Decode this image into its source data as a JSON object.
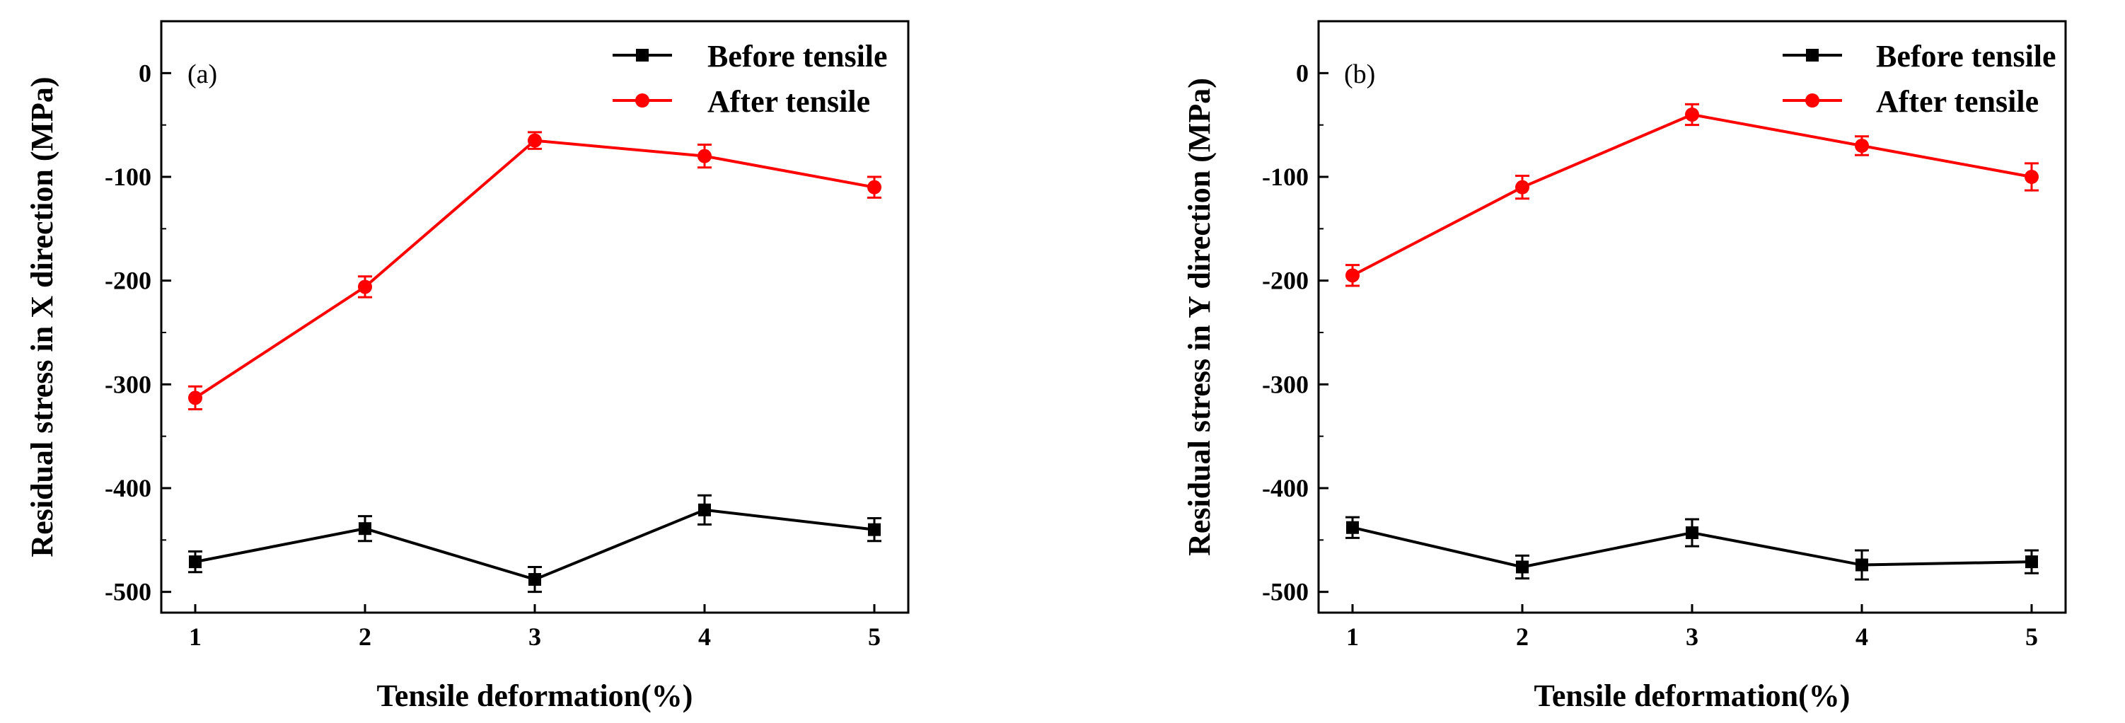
{
  "chart_data": [
    {
      "type": "line",
      "panel_label": "(a)",
      "x": [
        1,
        2,
        3,
        4,
        5
      ],
      "xticks": [
        "1",
        "2",
        "3",
        "4",
        "5"
      ],
      "xlim": [
        0.8,
        5.2
      ],
      "ylim": [
        -520,
        50
      ],
      "yticks": [
        0,
        -100,
        -200,
        -300,
        -400,
        -500
      ],
      "yticklabels": [
        "0",
        "-100",
        "-200",
        "-300",
        "-400",
        "-500"
      ],
      "xlabel": "Tensile deformation(%)",
      "ylabel": "Residual stress in X direction (MPa)",
      "legend_position": "top-right",
      "series": [
        {
          "name": "Before tensile",
          "color": "#000000",
          "marker": "square",
          "values": [
            -471,
            -439,
            -488,
            -421,
            -440
          ],
          "errors": [
            10,
            12,
            12,
            14,
            11
          ]
        },
        {
          "name": "After tensile",
          "color": "#ff0000",
          "marker": "circle",
          "values": [
            -313,
            -206,
            -65,
            -80,
            -110
          ],
          "errors": [
            11,
            10,
            8,
            11,
            10
          ]
        }
      ]
    },
    {
      "type": "line",
      "panel_label": "(b)",
      "x": [
        1,
        2,
        3,
        4,
        5
      ],
      "xticks": [
        "1",
        "2",
        "3",
        "4",
        "5"
      ],
      "xlim": [
        0.8,
        5.2
      ],
      "ylim": [
        -520,
        50
      ],
      "yticks": [
        0,
        -100,
        -200,
        -300,
        -400,
        -500
      ],
      "yticklabels": [
        "0",
        "-100",
        "-200",
        "-300",
        "-400",
        "-500"
      ],
      "xlabel": "Tensile deformation(%)",
      "ylabel": "Residual stress in Y direction (MPa)",
      "legend_position": "top-right",
      "series": [
        {
          "name": "Before tensile",
          "color": "#000000",
          "marker": "square",
          "values": [
            -438,
            -476,
            -443,
            -474,
            -471
          ],
          "errors": [
            10,
            11,
            13,
            14,
            11
          ]
        },
        {
          "name": "After tensile",
          "color": "#ff0000",
          "marker": "circle",
          "values": [
            -195,
            -110,
            -40,
            -70,
            -100
          ],
          "errors": [
            10,
            11,
            10,
            9,
            13
          ]
        }
      ]
    }
  ]
}
